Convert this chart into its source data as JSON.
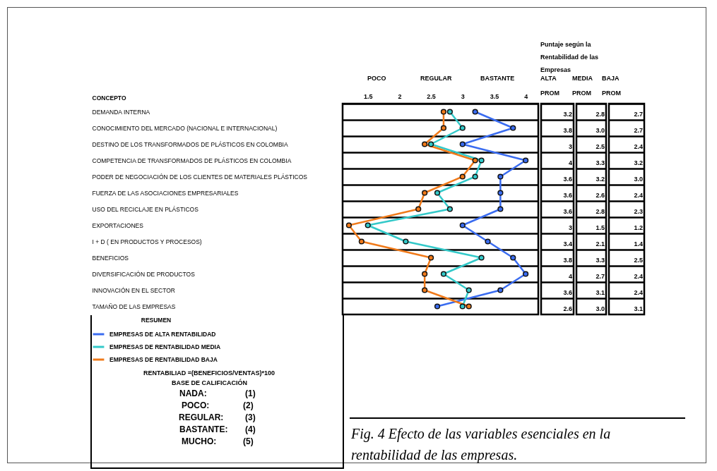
{
  "chart_data": {
    "type": "line",
    "orientation": "horizontal",
    "title": "Fig. 4 Efecto de las variables esenciales en la rentabilidad de las empresas.",
    "ylabel": "CONCEPTO",
    "legend_title": "RESUMEN",
    "categories": [
      "DEMANDA INTERNA",
      "CONOCIMIENTO DEL MERCADO (NACIONAL E INTERNACIONAL)",
      "DESTINO DE LOS TRANSFORMADOS DE PLÁSTICOS EN COLOMBIA",
      "COMPETENCIA DE TRANSFORMADOS DE PLÁSTICOS EN COLOMBIA",
      "PODER DE NEGOCIACIÓN DE LOS CLIENTES DE MATERIALES PLÁSTICOS",
      "FUERZA DE LAS ASOCIACIONES EMPRESARIALES",
      "USO DEL RECICLAJE EN PLÁSTICOS",
      "EXPORTACIONES",
      "I + D ( EN PRODUCTOS Y PROCESOS)",
      "BENEFICIOS",
      "DIVERSIFICACIÓN DE PRODUCTOS",
      "INNOVACIÓN EN EL SECTOR",
      "TAMAÑO DE LAS EMPRESAS"
    ],
    "series": [
      {
        "name": "EMPRESAS DE ALTA RENTABILIDAD",
        "color": "#3a6cf0",
        "values": [
          3.2,
          3.8,
          3,
          4,
          3.6,
          3.6,
          3.6,
          3,
          3.4,
          3.8,
          4,
          3.6,
          2.6
        ],
        "value_labels": [
          "3.2",
          "3.8",
          "3",
          "4",
          "3.6",
          "3.6",
          "3.6",
          "3",
          "3.4",
          "3.8",
          "4",
          "3.6",
          "2.6"
        ]
      },
      {
        "name": "EMPRESAS DE RENTABILIDAD MEDIA",
        "color": "#33c9c9",
        "values": [
          2.8,
          3.0,
          2.5,
          3.3,
          3.2,
          2.6,
          2.8,
          1.5,
          2.1,
          3.3,
          2.7,
          3.1,
          3.0
        ],
        "value_labels": [
          "2.8",
          "3.0",
          "2.5",
          "3.3",
          "3.2",
          "2.6",
          "2.8",
          "1.5",
          "2.1",
          "3.3",
          "2.7",
          "3.1",
          "3.0"
        ]
      },
      {
        "name": "EMPRESAS DE RENTABILIDAD BAJA",
        "color": "#f07a1a",
        "values": [
          2.7,
          2.7,
          2.4,
          3.2,
          3.0,
          2.4,
          2.3,
          1.2,
          1.4,
          2.5,
          2.4,
          2.4,
          3.1
        ],
        "value_labels": [
          "2.7",
          "2.7",
          "2.4",
          "3.2",
          "3.0",
          "2.4",
          "2.3",
          "1.2",
          "1.4",
          "2.5",
          "2.4",
          "2.4",
          "3.1"
        ]
      }
    ],
    "xlim": [
      1.1,
      4.2
    ],
    "xticks": [
      1.5,
      2,
      2.5,
      3,
      3.5,
      4
    ],
    "grid": "y",
    "marker": "circle",
    "legend": "bottom left",
    "annotations": [
      "POCO",
      "REGULAR",
      "BASTANTE",
      "Puntaje según la Rentabilidad de las Empresas",
      "ALTA",
      "MEDIA",
      "BAJA",
      "PROM",
      "PROM",
      "PROM",
      "RENTABILIAD =(BENEFICIOS/VENTAS)*100",
      "BASE DE CALIFICACIÓN",
      "NADA:",
      "(1)",
      "POCO:",
      "(2)",
      "REGULAR:",
      "(3)",
      "BASTANTE:",
      "(4)",
      "MUCHO:",
      "(5)"
    ]
  }
}
